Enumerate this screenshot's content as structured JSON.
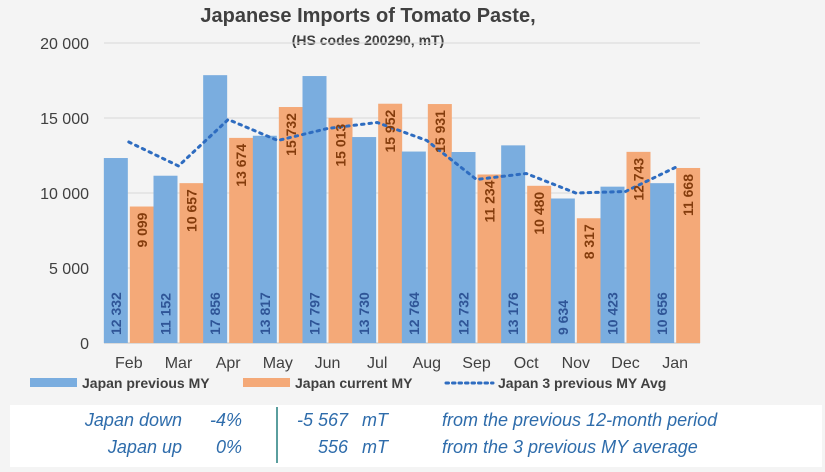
{
  "chart_data": {
    "type": "bar",
    "title": "Japanese Imports of Tomato Paste,",
    "subtitle": "(HS codes 200290, mT)",
    "categories": [
      "Feb",
      "Mar",
      "Apr",
      "May",
      "Jun",
      "Jul",
      "Aug",
      "Sep",
      "Oct",
      "Nov",
      "Dec",
      "Jan"
    ],
    "series": [
      {
        "name": "Japan previous MY",
        "kind": "bar",
        "color": "#7aaddf",
        "label_color": "#2f5597",
        "values": [
          12332,
          11152,
          17856,
          13817,
          17797,
          13730,
          12764,
          12732,
          13176,
          9634,
          10423,
          10656
        ]
      },
      {
        "name": "Japan current MY",
        "kind": "bar",
        "color": "#f4a978",
        "label_color": "#843c0c",
        "values": [
          9099,
          10657,
          13674,
          15732,
          15013,
          15952,
          15931,
          11234,
          10480,
          8317,
          12743,
          11668
        ]
      },
      {
        "name": "Japan 3 previous MY Avg",
        "kind": "line",
        "style": "dotted",
        "color": "#2e6cc0",
        "values": [
          13400,
          11800,
          14900,
          13500,
          14300,
          14700,
          13500,
          10900,
          11300,
          10000,
          10100,
          11700
        ]
      }
    ],
    "ylim": [
      0,
      20000
    ],
    "yticks": [
      0,
      5000,
      10000,
      15000,
      20000
    ],
    "ytick_labels": [
      "0",
      "5 000",
      "10 000",
      "15 000",
      "20 000"
    ],
    "bar_value_labels": {
      "previous": [
        "12 332",
        "11 152",
        "17 856",
        "13 817",
        "17 797",
        "13 730",
        "12 764",
        "12 732",
        "13 176",
        "9 634",
        "10 423",
        "10 656"
      ],
      "current": [
        "9 099",
        "10 657",
        "13 674",
        "15 732",
        "15 013",
        "15 952",
        "15 931",
        "11 234",
        "10 480",
        "8 317",
        "12 743",
        "11 668"
      ]
    },
    "grid": true,
    "legend_position": "bottom"
  },
  "summary": [
    {
      "label": "Japan down",
      "pct": "-4%",
      "value": "-5 567",
      "unit": "mT",
      "desc": "from the previous 12-month period"
    },
    {
      "label": "Japan up",
      "pct": "0%",
      "value": "556",
      "unit": "mT",
      "desc": "from the 3 previous MY average"
    }
  ]
}
